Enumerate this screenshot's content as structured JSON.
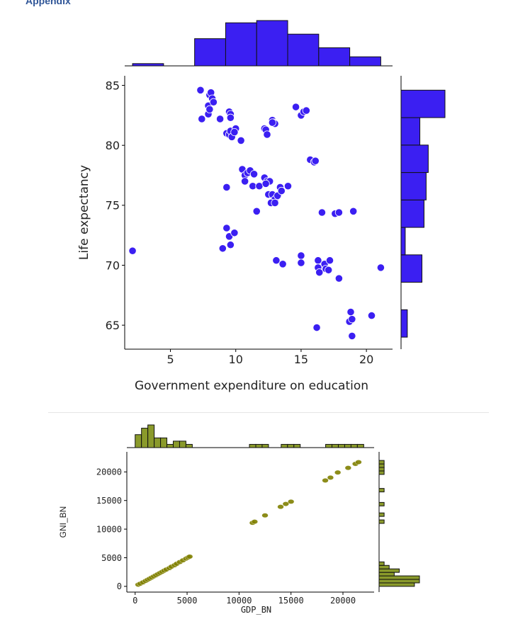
{
  "header": {
    "appendix_label": "Appendix"
  },
  "chart_data": [
    {
      "type": "scatter",
      "marginals": "histogram",
      "xlabel": "Government expenditure on education",
      "ylabel": "Life expectancy",
      "xlim": [
        1.5,
        22
      ],
      "ylim": [
        63,
        85.8
      ],
      "xticks": [
        5,
        10,
        15,
        20
      ],
      "yticks": [
        65,
        70,
        75,
        80,
        85
      ],
      "point_color": "#3b1ff2",
      "bar_color": "#3b1ff2",
      "points": [
        [
          2.1,
          71.2
        ],
        [
          7.3,
          84.6
        ],
        [
          7.4,
          82.2
        ],
        [
          7.9,
          82.6
        ],
        [
          7.9,
          83.3
        ],
        [
          8.0,
          84.2
        ],
        [
          8.1,
          84.4
        ],
        [
          8.2,
          83.9
        ],
        [
          8.3,
          83.6
        ],
        [
          8.0,
          83.0
        ],
        [
          8.8,
          82.2
        ],
        [
          9.5,
          82.8
        ],
        [
          9.6,
          82.6
        ],
        [
          9.6,
          82.3
        ],
        [
          9.3,
          81.0
        ],
        [
          9.5,
          80.9
        ],
        [
          9.6,
          81.2
        ],
        [
          9.7,
          80.7
        ],
        [
          10.0,
          81.4
        ],
        [
          9.9,
          81.1
        ],
        [
          10.4,
          80.4
        ],
        [
          12.2,
          81.4
        ],
        [
          12.3,
          81.3
        ],
        [
          12.4,
          80.9
        ],
        [
          12.8,
          82.1
        ],
        [
          12.9,
          81.9
        ],
        [
          13.0,
          81.8
        ],
        [
          12.8,
          81.9
        ],
        [
          14.6,
          83.2
        ],
        [
          15.0,
          82.5
        ],
        [
          15.2,
          82.8
        ],
        [
          15.4,
          82.9
        ],
        [
          15.7,
          78.8
        ],
        [
          16.0,
          78.6
        ],
        [
          16.1,
          78.7
        ],
        [
          10.5,
          78.0
        ],
        [
          10.7,
          77.5
        ],
        [
          10.9,
          77.7
        ],
        [
          11.1,
          77.9
        ],
        [
          11.4,
          77.6
        ],
        [
          10.7,
          77.0
        ],
        [
          11.3,
          76.6
        ],
        [
          11.8,
          76.6
        ],
        [
          12.2,
          77.3
        ],
        [
          12.4,
          77.0
        ],
        [
          12.6,
          77.0
        ],
        [
          12.3,
          76.8
        ],
        [
          12.5,
          75.9
        ],
        [
          12.8,
          75.9
        ],
        [
          13.0,
          75.5
        ],
        [
          13.2,
          75.8
        ],
        [
          13.4,
          76.5
        ],
        [
          13.5,
          76.2
        ],
        [
          14.0,
          76.6
        ],
        [
          12.7,
          75.2
        ],
        [
          13.0,
          75.2
        ],
        [
          11.6,
          74.5
        ],
        [
          9.3,
          76.5
        ],
        [
          9.3,
          73.1
        ],
        [
          9.5,
          72.4
        ],
        [
          9.9,
          72.7
        ],
        [
          9.6,
          71.7
        ],
        [
          9.0,
          71.4
        ],
        [
          13.1,
          70.4
        ],
        [
          13.6,
          70.1
        ],
        [
          15.0,
          70.8
        ],
        [
          15.0,
          70.2
        ],
        [
          16.3,
          70.4
        ],
        [
          16.3,
          69.8
        ],
        [
          16.4,
          69.4
        ],
        [
          16.8,
          70.1
        ],
        [
          17.2,
          70.4
        ],
        [
          16.9,
          69.7
        ],
        [
          17.1,
          69.6
        ],
        [
          17.9,
          68.9
        ],
        [
          16.6,
          74.4
        ],
        [
          17.6,
          74.3
        ],
        [
          17.9,
          74.4
        ],
        [
          19.0,
          74.5
        ],
        [
          21.1,
          69.8
        ],
        [
          18.8,
          66.1
        ],
        [
          18.7,
          65.3
        ],
        [
          18.9,
          65.5
        ],
        [
          20.4,
          65.8
        ],
        [
          18.9,
          64.1
        ],
        [
          16.2,
          64.8
        ]
      ],
      "x_hist": {
        "range": [
          2.1,
          21.1
        ],
        "counts": [
          1,
          0,
          12,
          19,
          20,
          14,
          8,
          4
        ]
      },
      "y_hist": {
        "range": [
          64.0,
          84.6
        ],
        "counts": [
          3,
          0,
          10,
          2,
          11,
          12,
          13,
          9,
          21
        ]
      }
    },
    {
      "type": "scatter",
      "marginals": "histogram",
      "xlabel": "GDP_BN",
      "ylabel": "GNI_BN",
      "xlim": [
        -800,
        23000
      ],
      "ylim": [
        -1000,
        23500
      ],
      "xticks": [
        0,
        5000,
        10000,
        15000,
        20000
      ],
      "yticks": [
        0,
        5000,
        10000,
        15000,
        20000
      ],
      "point_color": "#808000",
      "bar_color": "#8a9a2b",
      "points": [
        [
          300,
          300
        ],
        [
          500,
          480
        ],
        [
          750,
          700
        ],
        [
          1000,
          950
        ],
        [
          1200,
          1150
        ],
        [
          1400,
          1350
        ],
        [
          1600,
          1550
        ],
        [
          1800,
          1750
        ],
        [
          2000,
          1950
        ],
        [
          2200,
          2150
        ],
        [
          2400,
          2350
        ],
        [
          2600,
          2550
        ],
        [
          2800,
          2750
        ],
        [
          3000,
          2950
        ],
        [
          3300,
          3200
        ],
        [
          3500,
          3450
        ],
        [
          3800,
          3700
        ],
        [
          4000,
          3950
        ],
        [
          4300,
          4250
        ],
        [
          4600,
          4550
        ],
        [
          4900,
          4850
        ],
        [
          5100,
          5050
        ],
        [
          5250,
          5200
        ],
        [
          11300,
          11100
        ],
        [
          11500,
          11300
        ],
        [
          12500,
          12400
        ],
        [
          14000,
          13900
        ],
        [
          14500,
          14400
        ],
        [
          15000,
          14800
        ],
        [
          18300,
          18500
        ],
        [
          18800,
          19000
        ],
        [
          19500,
          19900
        ],
        [
          20500,
          20700
        ],
        [
          21200,
          21400
        ],
        [
          21500,
          21700
        ]
      ],
      "x_hist": {
        "range": [
          0,
          22000
        ],
        "bins": 36,
        "counts": [
          4,
          6,
          7,
          3,
          3,
          1,
          2,
          2,
          1,
          0,
          0,
          0,
          0,
          0,
          0,
          0,
          0,
          0,
          1,
          1,
          1,
          0,
          0,
          1,
          1,
          1,
          0,
          0,
          0,
          0,
          1,
          1,
          1,
          1,
          1,
          1
        ]
      },
      "y_hist": {
        "range": [
          0,
          22000
        ],
        "bins": 36,
        "counts": [
          7,
          8,
          8,
          3,
          4,
          2,
          1,
          0,
          0,
          0,
          0,
          0,
          0,
          0,
          0,
          0,
          0,
          0,
          1,
          0,
          1,
          0,
          0,
          1,
          0,
          0,
          0,
          1,
          0,
          0,
          0,
          0,
          1,
          1,
          1,
          1
        ]
      }
    }
  ]
}
